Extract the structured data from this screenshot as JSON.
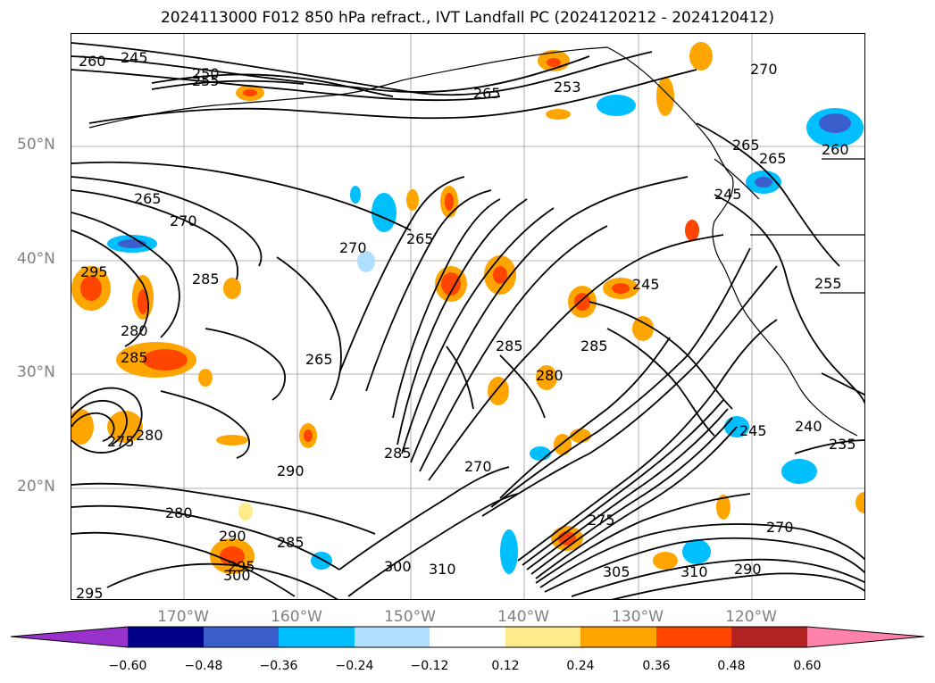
{
  "title": "2024113000 F012 850 hPa refract., IVT Landfall PC (2024120212 - 2024120412)",
  "lat_labels": [
    "50°N",
    "40°N",
    "30°N",
    "20°N"
  ],
  "lon_labels": [
    "170°W",
    "160°W",
    "150°W",
    "140°W",
    "130°W",
    "120°W"
  ],
  "colorbar": {
    "colors": [
      "#9932cc",
      "#00008b",
      "#3a5fcd",
      "#00bfff",
      "#b0e0ff",
      "#ffffff",
      "#ffeb8a",
      "#ffa500",
      "#ff4500",
      "#b22222",
      "#ff82ab"
    ],
    "ticks": [
      "−0.60",
      "−0.48",
      "−0.36",
      "−0.24",
      "−0.12",
      "0.12",
      "0.24",
      "0.36",
      "0.48",
      "0.60"
    ]
  },
  "contour_labels": [
    "260",
    "245",
    "250",
    "255",
    "265",
    "253",
    "270",
    "265",
    "265",
    "245",
    "260",
    "265",
    "270",
    "270",
    "265",
    "295",
    "285",
    "280",
    "285",
    "265",
    "285",
    "285",
    "280",
    "245",
    "255",
    "240",
    "235",
    "245",
    "275",
    "280",
    "290",
    "285",
    "280",
    "270",
    "290",
    "285",
    "300",
    "295",
    "295",
    "300",
    "310",
    "305",
    "310",
    "290",
    "275",
    "270"
  ],
  "colors": {
    "contour": "#000000",
    "coast": "#000000",
    "grid": "#808080"
  }
}
